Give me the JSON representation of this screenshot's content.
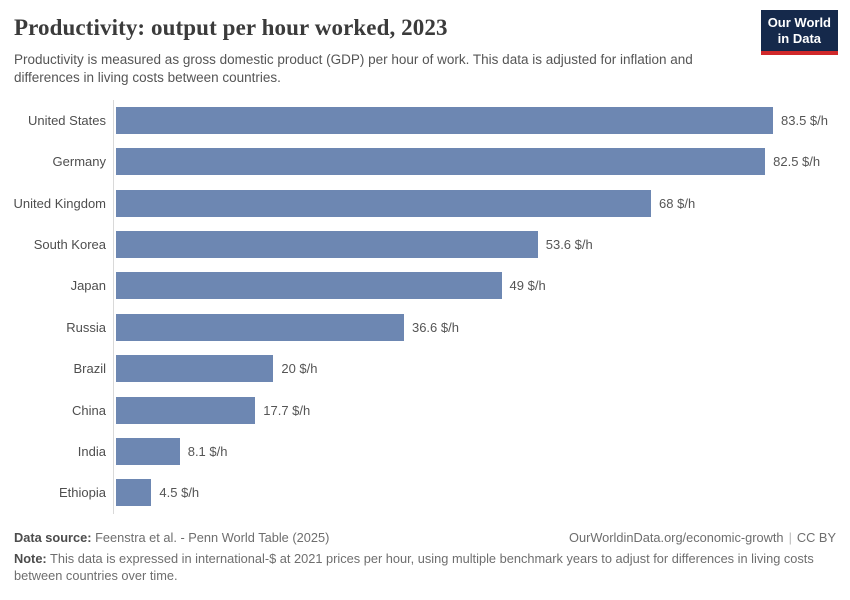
{
  "header": {
    "title": "Productivity: output per hour worked, 2023",
    "subtitle": "Productivity is measured as gross domestic product (GDP) per hour of work. This data is adjusted for inflation and differences in living costs between countries.",
    "logo_line1": "Our World",
    "logo_line2": "in Data"
  },
  "chart_data": {
    "type": "bar",
    "orientation": "horizontal",
    "title": "Productivity: output per hour worked, 2023",
    "unit": "$/h",
    "categories": [
      "United States",
      "Germany",
      "United Kingdom",
      "South Korea",
      "Japan",
      "Russia",
      "Brazil",
      "China",
      "India",
      "Ethiopia"
    ],
    "values": [
      83.5,
      82.5,
      68,
      53.6,
      49,
      36.6,
      20,
      17.7,
      8.1,
      4.5
    ],
    "value_labels": [
      "83.5 $/h",
      "82.5 $/h",
      "68 $/h",
      "53.6 $/h",
      "49 $/h",
      "36.6 $/h",
      "20 $/h",
      "17.7 $/h",
      "8.1 $/h",
      "4.5 $/h"
    ],
    "xlim": [
      0,
      83.5
    ],
    "grid": false,
    "legend": "none",
    "bar_color": "#6d87b2",
    "axis_line_color": "#d9d9d9"
  },
  "footer": {
    "datasource_label": "Data source:",
    "datasource_value": " Feenstra et al. - Penn World Table (2025)",
    "url": "OurWorldinData.org/economic-growth",
    "separator": "|",
    "license": "CC BY",
    "note_label": "Note:",
    "note_text": " This data is expressed in international-$ at 2021 prices per hour, using multiple benchmark years to adjust for differences in living costs between countries over time."
  }
}
